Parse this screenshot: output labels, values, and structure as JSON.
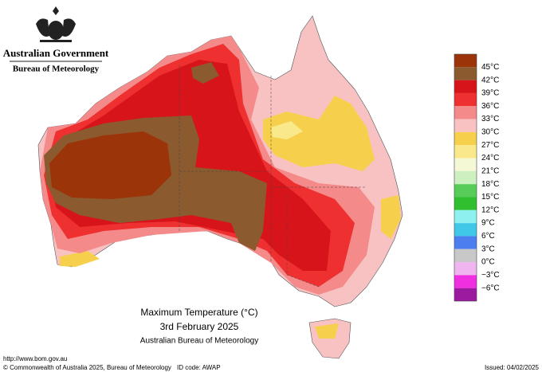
{
  "header": {
    "agency": "Australian Government",
    "bureau": "Bureau of Meteorology"
  },
  "map": {
    "title": "Maximum Temperature (°C)",
    "date": "3rd February 2025",
    "source": "Australian Bureau of Meteorology"
  },
  "legend": {
    "labels": [
      "45°C",
      "42°C",
      "39°C",
      "36°C",
      "33°C",
      "30°C",
      "27°C",
      "24°C",
      "21°C",
      "18°C",
      "15°C",
      "12°C",
      "9°C",
      "6°C",
      "3°C",
      "0°C",
      "−3°C",
      "−6°C"
    ],
    "colors": [
      "#9b3408",
      "#8b5a2e",
      "#d7141a",
      "#ee3030",
      "#f48a8a",
      "#f9c2c2",
      "#f6d04c",
      "#f9e98a",
      "#f4f8d4",
      "#cdf0c0",
      "#58cc58",
      "#2fbf2f",
      "#8ff0f0",
      "#40c8e8",
      "#4d7ef0",
      "#c8c8c8",
      "#f0b4f0",
      "#f030e0",
      "#9c1aa0"
    ]
  },
  "footer": {
    "url": "http://www.bom.gov.au",
    "copyright": "© Commonwealth of Australia 2025, Bureau of Meteorology",
    "id_code": "ID code: AWAP",
    "issued": "Issued: 04/02/2025"
  }
}
